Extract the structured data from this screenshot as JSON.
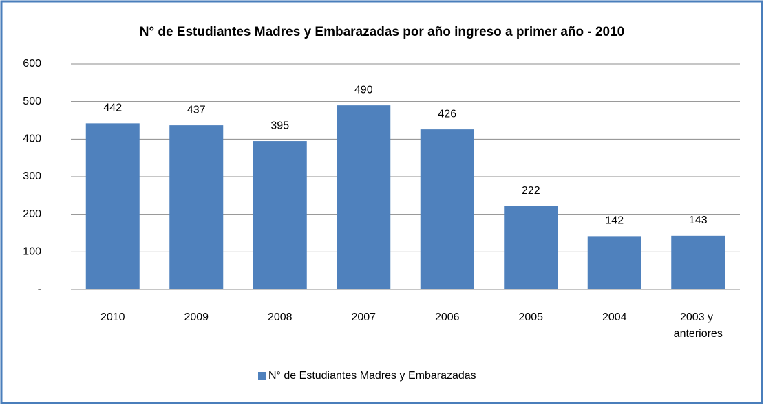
{
  "chart_data": {
    "type": "bar",
    "title": "N° de Estudiantes  Madres y Embarazadas  por año ingreso a primer año - 2010",
    "categories": [
      "2010",
      "2009",
      "2008",
      "2007",
      "2006",
      "2005",
      "2004",
      "2003 y anteriores"
    ],
    "series": [
      {
        "name": "N° de Estudiantes Madres y Embarazadas",
        "color": "#4f81bd",
        "values": [
          442,
          437,
          395,
          490,
          426,
          222,
          142,
          143
        ]
      }
    ],
    "ylim": [
      0,
      600
    ],
    "yticks": [
      {
        "value": 0,
        "label": "-"
      },
      100,
      200,
      300,
      400,
      500,
      600
    ],
    "grid": true,
    "legend": "bottom"
  }
}
